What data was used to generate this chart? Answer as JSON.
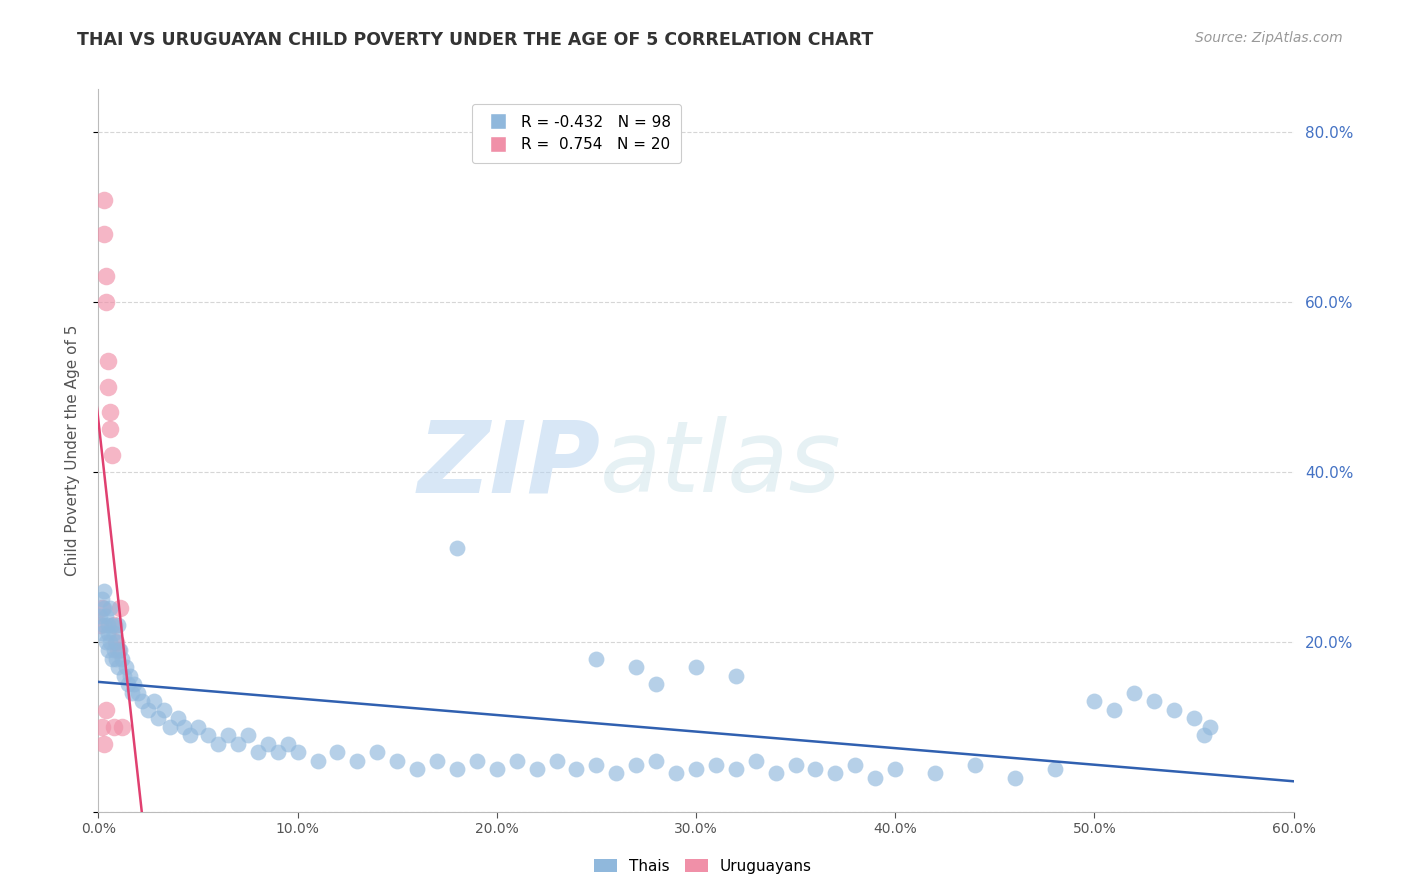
{
  "title": "THAI VS URUGUAYAN CHILD POVERTY UNDER THE AGE OF 5 CORRELATION CHART",
  "source": "Source: ZipAtlas.com",
  "ylabel": "Child Poverty Under the Age of 5",
  "xlim": [
    0.0,
    0.6
  ],
  "ylim": [
    0.0,
    0.85
  ],
  "xticks": [
    0.0,
    0.1,
    0.2,
    0.3,
    0.4,
    0.5,
    0.6
  ],
  "yticks_right": [
    0.2,
    0.4,
    0.6,
    0.8
  ],
  "thai_color": "#90b8dc",
  "uruguayan_color": "#f090a8",
  "thai_line_color": "#3060b0",
  "uruguayan_line_color": "#e04070",
  "legend_R_thai": "-0.432",
  "legend_N_thai": "98",
  "legend_R_uru": "0.754",
  "legend_N_uru": "20",
  "watermark_zip": "ZIP",
  "watermark_atlas": "atlas",
  "background_color": "#ffffff",
  "thai_x": [
    0.001,
    0.002,
    0.002,
    0.003,
    0.003,
    0.003,
    0.004,
    0.004,
    0.005,
    0.005,
    0.005,
    0.006,
    0.006,
    0.007,
    0.007,
    0.008,
    0.008,
    0.009,
    0.009,
    0.01,
    0.01,
    0.011,
    0.012,
    0.013,
    0.014,
    0.015,
    0.016,
    0.017,
    0.018,
    0.02,
    0.022,
    0.025,
    0.028,
    0.03,
    0.033,
    0.036,
    0.04,
    0.043,
    0.046,
    0.05,
    0.055,
    0.06,
    0.065,
    0.07,
    0.075,
    0.08,
    0.085,
    0.09,
    0.095,
    0.1,
    0.11,
    0.12,
    0.13,
    0.14,
    0.15,
    0.16,
    0.17,
    0.18,
    0.19,
    0.2,
    0.21,
    0.22,
    0.23,
    0.24,
    0.25,
    0.26,
    0.27,
    0.28,
    0.29,
    0.3,
    0.31,
    0.32,
    0.33,
    0.34,
    0.35,
    0.36,
    0.37,
    0.38,
    0.39,
    0.4,
    0.42,
    0.44,
    0.46,
    0.48,
    0.5,
    0.51,
    0.52,
    0.53,
    0.54,
    0.55,
    0.555,
    0.558,
    0.3,
    0.28,
    0.32,
    0.25,
    0.27,
    0.18
  ],
  "thai_y": [
    0.23,
    0.25,
    0.21,
    0.22,
    0.24,
    0.26,
    0.2,
    0.23,
    0.19,
    0.22,
    0.21,
    0.2,
    0.24,
    0.18,
    0.22,
    0.19,
    0.21,
    0.2,
    0.18,
    0.22,
    0.17,
    0.19,
    0.18,
    0.16,
    0.17,
    0.15,
    0.16,
    0.14,
    0.15,
    0.14,
    0.13,
    0.12,
    0.13,
    0.11,
    0.12,
    0.1,
    0.11,
    0.1,
    0.09,
    0.1,
    0.09,
    0.08,
    0.09,
    0.08,
    0.09,
    0.07,
    0.08,
    0.07,
    0.08,
    0.07,
    0.06,
    0.07,
    0.06,
    0.07,
    0.06,
    0.05,
    0.06,
    0.05,
    0.06,
    0.05,
    0.06,
    0.05,
    0.06,
    0.05,
    0.055,
    0.045,
    0.055,
    0.06,
    0.045,
    0.05,
    0.055,
    0.05,
    0.06,
    0.045,
    0.055,
    0.05,
    0.045,
    0.055,
    0.04,
    0.05,
    0.045,
    0.055,
    0.04,
    0.05,
    0.13,
    0.12,
    0.14,
    0.13,
    0.12,
    0.11,
    0.09,
    0.1,
    0.17,
    0.15,
    0.16,
    0.18,
    0.17,
    0.31
  ],
  "uru_x": [
    0.001,
    0.002,
    0.003,
    0.003,
    0.004,
    0.004,
    0.005,
    0.005,
    0.006,
    0.006,
    0.007,
    0.008,
    0.009,
    0.01,
    0.011,
    0.012,
    0.002,
    0.003,
    0.004,
    0.008
  ],
  "uru_y": [
    0.22,
    0.24,
    0.68,
    0.72,
    0.63,
    0.6,
    0.5,
    0.53,
    0.45,
    0.47,
    0.42,
    0.22,
    0.2,
    0.19,
    0.24,
    0.1,
    0.1,
    0.08,
    0.12,
    0.1
  ]
}
